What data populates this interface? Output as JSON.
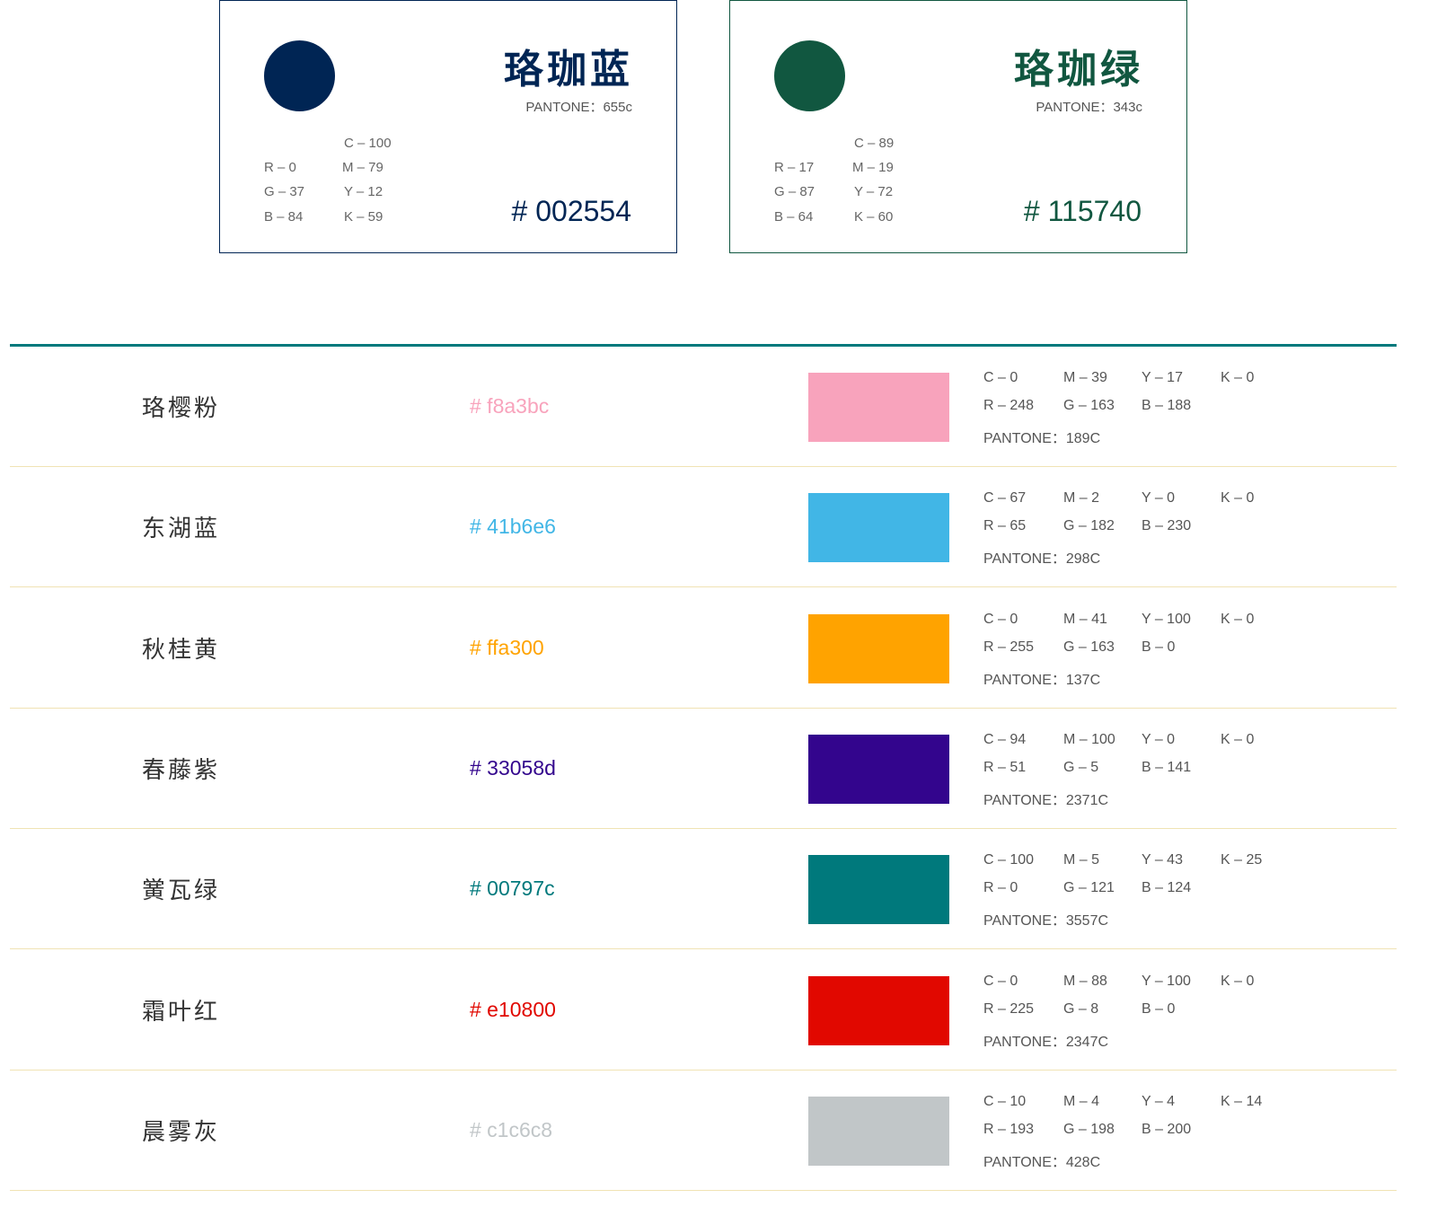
{
  "primary": [
    {
      "name": "珞珈蓝",
      "pantone": "PANTONE：655c",
      "hex": "# 002554",
      "color": "#002554",
      "r": "R – 0",
      "g": "G – 37",
      "b": "B – 84",
      "c": "C – 100",
      "m": "M – 79",
      "y": "Y – 12",
      "k": "K – 59"
    },
    {
      "name": "珞珈绿",
      "pantone": "PANTONE：343c",
      "hex": "# 115740",
      "color": "#115740",
      "r": "R – 17",
      "g": "G – 87",
      "b": "B – 64",
      "c": "C – 89",
      "m": "M – 19",
      "y": "Y – 72",
      "k": "K – 60"
    }
  ],
  "rule_color": "#00797c",
  "secondary": [
    {
      "name": "珞樱粉",
      "hex": "# f8a3bc",
      "color": "#f8a3bc",
      "c": "C – 0",
      "m": "M – 39",
      "y": "Y – 17",
      "k": "K – 0",
      "r": "R – 248",
      "g": "G – 163",
      "b": "B – 188",
      "pantone": "PANTONE：189C"
    },
    {
      "name": "东湖蓝",
      "hex": "# 41b6e6",
      "color": "#41b6e6",
      "c": "C – 67",
      "m": "M – 2",
      "y": "Y – 0",
      "k": "K – 0",
      "r": "R – 65",
      "g": "G – 182",
      "b": "B – 230",
      "pantone": "PANTONE：298C"
    },
    {
      "name": "秋桂黄",
      "hex": "# ffa300",
      "color": "#ffa300",
      "c": "C – 0",
      "m": "M – 41",
      "y": "Y – 100",
      "k": "K – 0",
      "r": "R – 255",
      "g": "G – 163",
      "b": "B – 0",
      "pantone": "PANTONE：137C"
    },
    {
      "name": "春藤紫",
      "hex": "# 33058d",
      "color": "#33058d",
      "c": "C – 94",
      "m": "M – 100",
      "y": "Y – 0",
      "k": "K – 0",
      "r": "R – 51",
      "g": "G – 5",
      "b": "B – 141",
      "pantone": "PANTONE：2371C"
    },
    {
      "name": "黉瓦绿",
      "hex": "# 00797c",
      "color": "#00797c",
      "c": "C – 100",
      "m": "M – 5",
      "y": "Y – 43",
      "k": "K – 25",
      "r": "R – 0",
      "g": "G – 121",
      "b": "B – 124",
      "pantone": "PANTONE：3557C"
    },
    {
      "name": "霜叶红",
      "hex": "# e10800",
      "color": "#e10800",
      "c": "C – 0",
      "m": "M – 88",
      "y": "Y – 100",
      "k": "K – 0",
      "r": "R – 225",
      "g": "G – 8",
      "b": "B – 0",
      "pantone": "PANTONE：2347C"
    },
    {
      "name": "晨雾灰",
      "hex": "# c1c6c8",
      "color": "#c1c6c8",
      "c": "C – 10",
      "m": "M – 4",
      "y": "Y – 4",
      "k": "K – 14",
      "r": "R – 193",
      "g": "G – 198",
      "b": "B – 200",
      "pantone": "PANTONE：428C"
    }
  ]
}
